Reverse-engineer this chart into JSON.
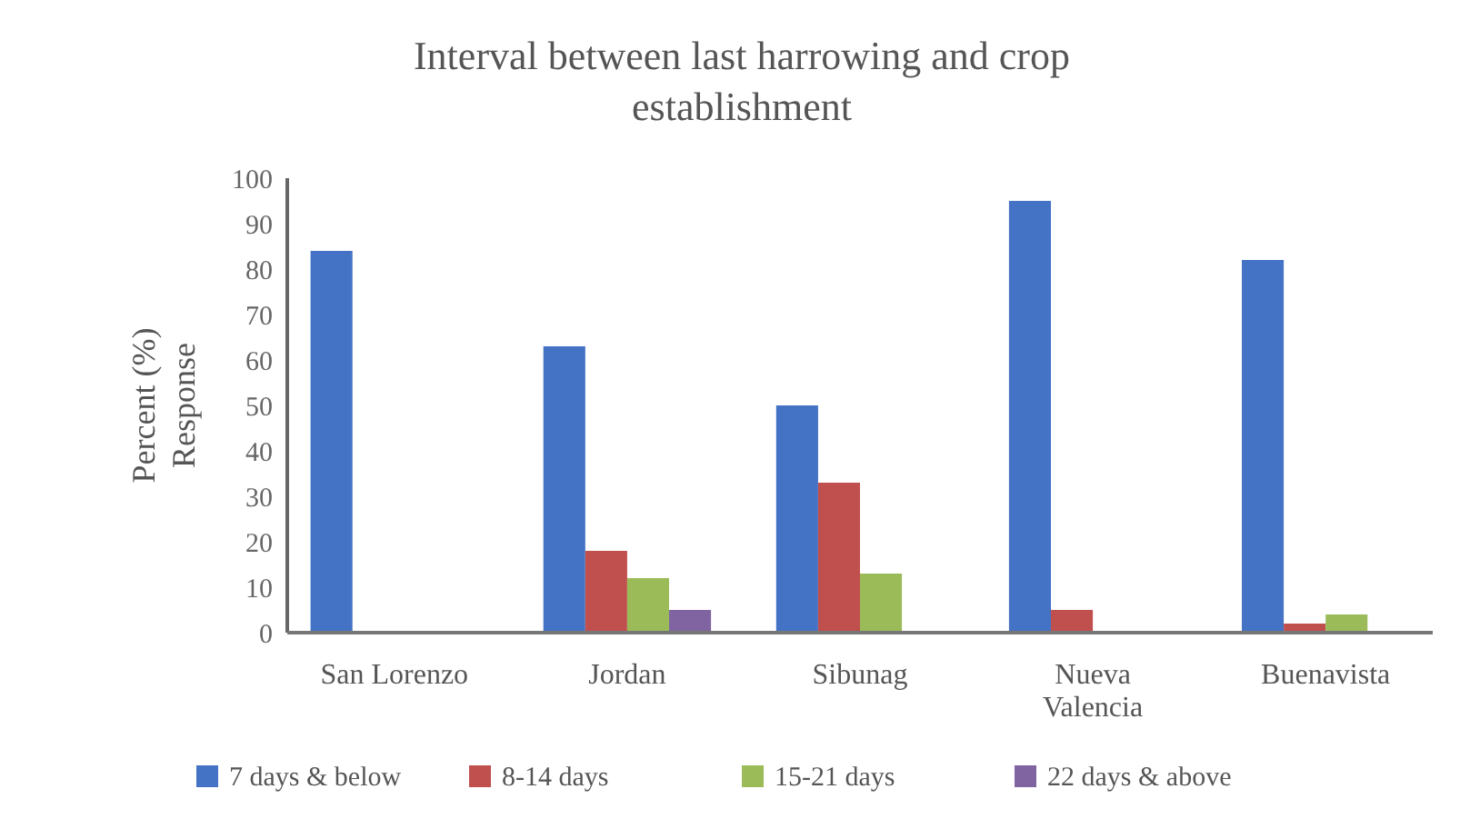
{
  "chart_data": {
    "type": "bar",
    "title": "Interval between last harrowing and crop establishment",
    "ylabel": "Percent (%) Response",
    "categories": [
      "San Lorenzo",
      "Jordan",
      "Sibunag",
      "Nueva Valencia",
      "Buenavista"
    ],
    "series": [
      {
        "name": "7 days & below",
        "color": "#4472c4",
        "values": [
          84,
          63,
          50,
          95,
          82
        ]
      },
      {
        "name": "8-14 days",
        "color": "#c0504d",
        "values": [
          0,
          18,
          33,
          5,
          2
        ]
      },
      {
        "name": "15-21 days",
        "color": "#9bbb59",
        "values": [
          0,
          12,
          13,
          0,
          4
        ]
      },
      {
        "name": "22 days & above",
        "color": "#8064a2",
        "values": [
          0,
          5,
          0,
          0,
          0
        ]
      }
    ],
    "ylim": [
      0,
      100
    ],
    "yticks": [
      0,
      10,
      20,
      30,
      40,
      50,
      60,
      70,
      80,
      90,
      100
    ],
    "grid": false,
    "legend": "bottom"
  }
}
